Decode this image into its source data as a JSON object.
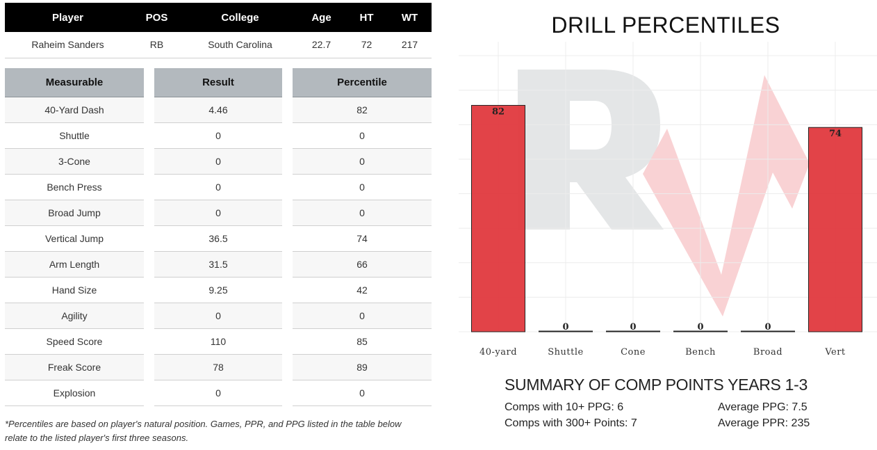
{
  "player_table": {
    "headers": [
      "Player",
      "POS",
      "College",
      "Age",
      "HT",
      "WT"
    ],
    "row": [
      "Raheim Sanders",
      "RB",
      "South Carolina",
      "22.7",
      "72",
      "217"
    ]
  },
  "measurables": {
    "headers": {
      "measurable": "Measurable",
      "result": "Result",
      "percentile": "Percentile"
    },
    "rows": [
      {
        "name": "40-Yard Dash",
        "result": "4.46",
        "percentile": "82"
      },
      {
        "name": "Shuttle",
        "result": "0",
        "percentile": "0"
      },
      {
        "name": "3-Cone",
        "result": "0",
        "percentile": "0"
      },
      {
        "name": "Bench Press",
        "result": "0",
        "percentile": "0"
      },
      {
        "name": "Broad Jump",
        "result": "0",
        "percentile": "0"
      },
      {
        "name": "Vertical Jump",
        "result": "36.5",
        "percentile": "74"
      },
      {
        "name": "Arm Length",
        "result": "31.5",
        "percentile": "66"
      },
      {
        "name": "Hand Size",
        "result": "9.25",
        "percentile": "42"
      },
      {
        "name": "Agility",
        "result": "0",
        "percentile": "0"
      },
      {
        "name": "Speed Score",
        "result": "110",
        "percentile": "85"
      },
      {
        "name": "Freak Score",
        "result": "78",
        "percentile": "89"
      },
      {
        "name": "Explosion",
        "result": "0",
        "percentile": "0"
      }
    ]
  },
  "footnote": {
    "line1": "*Percentiles are based on player's natural position. Games, PPR, and PPG listed in the table below",
    "line2": "relate to the listed player's first three seasons."
  },
  "chart_data": {
    "type": "bar",
    "title": "DRILL PERCENTILES",
    "categories": [
      "40-yard",
      "Shuttle",
      "Cone",
      "Bench",
      "Broad",
      "Vert"
    ],
    "values": [
      82,
      0,
      0,
      0,
      0,
      74
    ],
    "ylim": [
      0,
      100
    ],
    "grid": true,
    "bar_color": "#e0393e",
    "watermark_letters": "RV"
  },
  "summary": {
    "title": "SUMMARY OF COMP POINTS YEARS 1-3",
    "comps_10_ppg": "Comps with 10+ PPG: 6",
    "comps_300_pts": "Comps with 300+ Points: 7",
    "avg_ppg": "Average PPG: 7.5",
    "avg_ppr": "Average PPR: 235"
  }
}
